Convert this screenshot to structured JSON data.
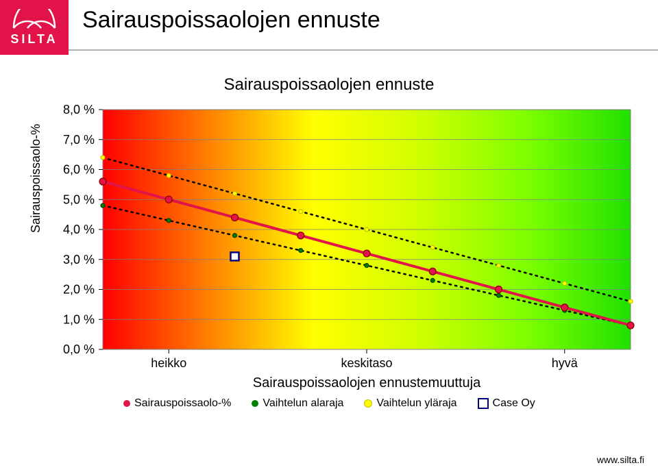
{
  "logo": {
    "text": "SILTA",
    "bg": "#e11349",
    "fg": "#ffffff"
  },
  "page_title": "Sairauspoissaolojen ennuste",
  "chart": {
    "title": "Sairauspoissaolojen ennuste",
    "y_axis_title": "Sairauspoissaolo-%",
    "x_axis_title": "Sairauspoissaolojen ennustemuuttuja",
    "y_ticks": [
      "0,0 %",
      "1,0 %",
      "2,0 %",
      "3,0 %",
      "4,0 %",
      "5,0 %",
      "6,0 %",
      "7,0 %",
      "8,0 %"
    ],
    "y_min": 0,
    "y_max": 8,
    "x_categories": [
      "heikko",
      "keskitaso",
      "hyvä"
    ],
    "plot_bg_gradient": [
      "#ff0000",
      "#ff8000",
      "#ffff00",
      "#d0ff00",
      "#80ff00",
      "#20e000"
    ],
    "gridline_color": "#808080",
    "axis_font_size": 18,
    "title_font_size": 24,
    "series": {
      "main": {
        "label": "Sairauspoissaolo-%",
        "color": "#e11349",
        "line_width": 4,
        "marker_border": "#8b0000",
        "points": [
          [
            0,
            5.6
          ],
          [
            1,
            5.0
          ],
          [
            2,
            4.4
          ],
          [
            3,
            3.8
          ],
          [
            4,
            3.2
          ],
          [
            5,
            2.6
          ],
          [
            6,
            2.0
          ],
          [
            7,
            1.4
          ],
          [
            8,
            0.8
          ]
        ]
      },
      "lower": {
        "label": "Vaihtelun alaraja",
        "color": "#008000",
        "line_style": "dotted",
        "line_width": 2.5,
        "marker_radius": 3,
        "points": [
          [
            0,
            4.8
          ],
          [
            1,
            4.3
          ],
          [
            2,
            3.8
          ],
          [
            3,
            3.3
          ],
          [
            4,
            2.8
          ],
          [
            5,
            2.3
          ],
          [
            6,
            1.8
          ],
          [
            7,
            1.3
          ],
          [
            8,
            0.8
          ]
        ]
      },
      "upper": {
        "label": "Vaihtelun yläraja",
        "color": "#ffff00",
        "line_style": "dotted",
        "line_width": 2.5,
        "marker_radius": 3,
        "marker_border": "#c0c000",
        "points": [
          [
            0,
            6.4
          ],
          [
            1,
            5.8
          ],
          [
            2,
            5.2
          ],
          [
            3,
            4.6
          ],
          [
            4,
            4.0
          ],
          [
            5,
            3.4
          ],
          [
            6,
            2.8
          ],
          [
            7,
            2.2
          ],
          [
            8,
            1.6
          ]
        ]
      },
      "case": {
        "label": "Case Oy",
        "color": "#000080",
        "marker_type": "square-open",
        "marker_size": 12,
        "points": [
          [
            2,
            3.1
          ]
        ]
      }
    }
  },
  "footer": "www.silta.fi"
}
